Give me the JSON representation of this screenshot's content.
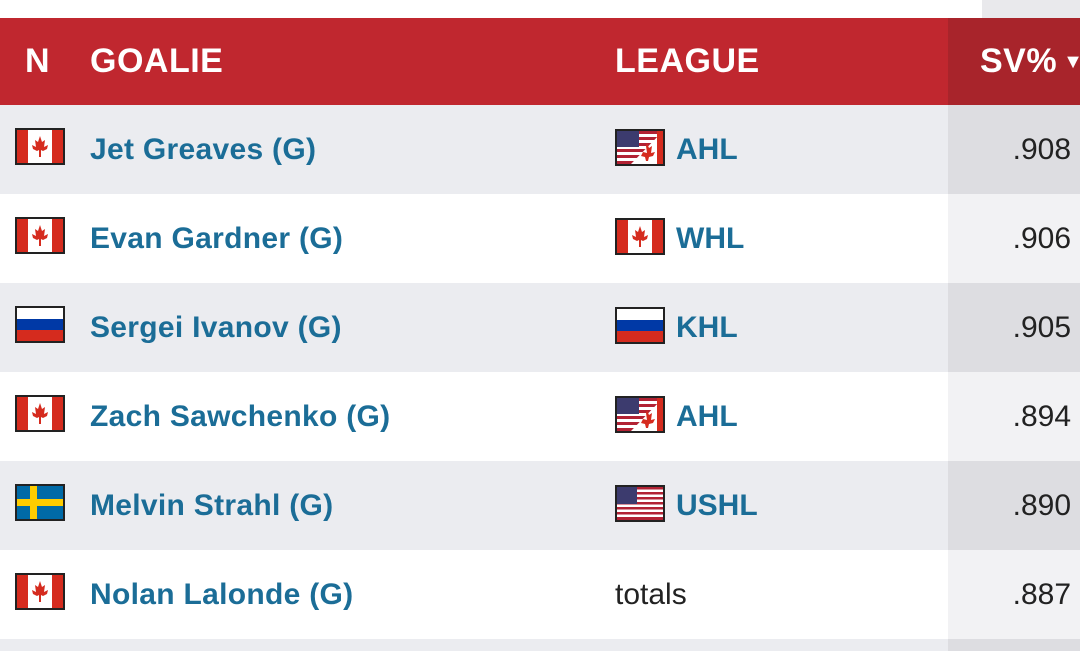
{
  "header": {
    "n": "N",
    "goalie": "GOALIE",
    "league": "LEAGUE",
    "sv": "SV%",
    "sort_indicator": "▼"
  },
  "colors": {
    "header_bg": "#c0272f",
    "link": "#1b6d97"
  },
  "rows": [
    {
      "name": "Jet Greaves (G)",
      "nationality_flag": "canada-flag-icon",
      "league": "AHL",
      "league_flag": "usa-canada-flag-icon",
      "sv": ".908"
    },
    {
      "name": "Evan Gardner (G)",
      "nationality_flag": "canada-flag-icon",
      "league": "WHL",
      "league_flag": "canada-flag-icon",
      "sv": ".906"
    },
    {
      "name": "Sergei Ivanov (G)",
      "nationality_flag": "russia-flag-icon",
      "league": "KHL",
      "league_flag": "russia-flag-icon",
      "sv": ".905"
    },
    {
      "name": "Zach Sawchenko (G)",
      "nationality_flag": "canada-flag-icon",
      "league": "AHL",
      "league_flag": "usa-canada-flag-icon",
      "sv": ".894"
    },
    {
      "name": "Melvin Strahl (G)",
      "nationality_flag": "sweden-flag-icon",
      "league": "USHL",
      "league_flag": "usa-flag-icon",
      "sv": ".890"
    },
    {
      "name": "Nolan Lalonde (G)",
      "nationality_flag": "canada-flag-icon",
      "league": "totals",
      "league_flag": "",
      "sv": ".887"
    }
  ]
}
